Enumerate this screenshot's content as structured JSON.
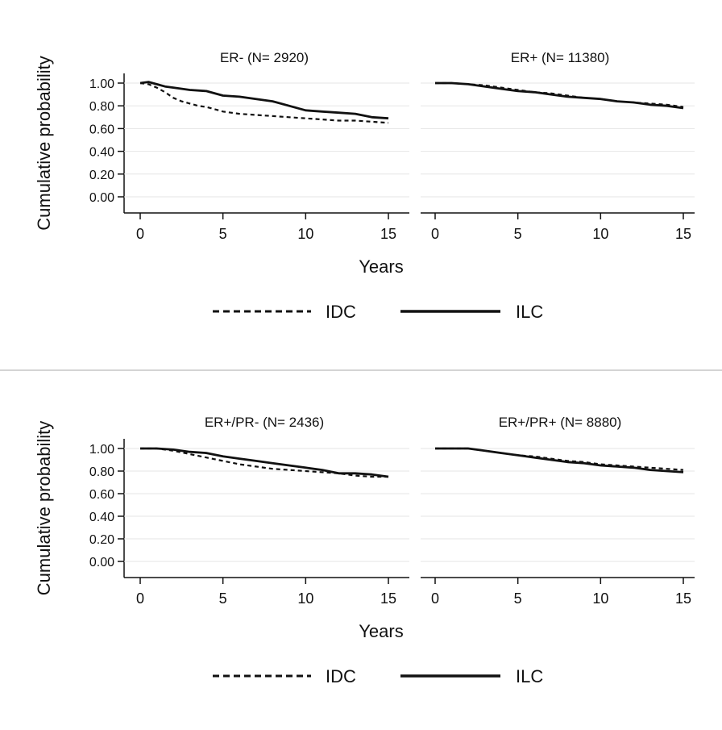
{
  "chart_data": [
    {
      "type": "line",
      "ylabel": "Cumulative probability",
      "xlabel": "Years",
      "xlim": [
        0,
        15
      ],
      "ylim": [
        0,
        1
      ],
      "xticks": [
        "0",
        "5",
        "10",
        "15"
      ],
      "yticks": [
        "0.00",
        "0.20",
        "0.40",
        "0.60",
        "0.80",
        "1.00"
      ],
      "grid": true,
      "legend": {
        "position": "bottom",
        "entries": [
          "IDC",
          "ILC"
        ]
      },
      "panels": [
        {
          "title": "ER- (N= 2920)",
          "series": [
            {
              "name": "IDC",
              "style": "dashed",
              "x": [
                0,
                0.5,
                1,
                1.5,
                2,
                2.5,
                3,
                3.5,
                4,
                4.5,
                5,
                6,
                7,
                8,
                9,
                10,
                11,
                12,
                13,
                14,
                15
              ],
              "y": [
                1.0,
                0.99,
                0.96,
                0.92,
                0.87,
                0.84,
                0.82,
                0.8,
                0.79,
                0.77,
                0.75,
                0.73,
                0.72,
                0.71,
                0.7,
                0.69,
                0.68,
                0.67,
                0.67,
                0.66,
                0.65
              ]
            },
            {
              "name": "ILC",
              "style": "solid",
              "x": [
                0,
                0.5,
                1,
                1.5,
                2,
                3,
                4,
                5,
                6,
                7,
                8,
                9,
                10,
                11,
                12,
                13,
                14,
                15
              ],
              "y": [
                1.0,
                1.01,
                0.99,
                0.97,
                0.96,
                0.94,
                0.93,
                0.89,
                0.88,
                0.86,
                0.84,
                0.8,
                0.76,
                0.75,
                0.74,
                0.73,
                0.7,
                0.69
              ]
            }
          ]
        },
        {
          "title": "ER+ (N= 11380)",
          "series": [
            {
              "name": "IDC",
              "style": "dashed",
              "x": [
                0,
                1,
                2,
                3,
                4,
                5,
                6,
                7,
                8,
                9,
                10,
                11,
                12,
                13,
                14,
                15
              ],
              "y": [
                1.0,
                1.0,
                0.99,
                0.98,
                0.96,
                0.94,
                0.92,
                0.91,
                0.89,
                0.87,
                0.86,
                0.84,
                0.83,
                0.82,
                0.81,
                0.79
              ]
            },
            {
              "name": "ILC",
              "style": "solid",
              "x": [
                0,
                1,
                2,
                3,
                4,
                5,
                6,
                7,
                8,
                9,
                10,
                11,
                12,
                13,
                14,
                15
              ],
              "y": [
                1.0,
                1.0,
                0.99,
                0.97,
                0.95,
                0.93,
                0.92,
                0.9,
                0.88,
                0.87,
                0.86,
                0.84,
                0.83,
                0.81,
                0.8,
                0.78
              ]
            }
          ]
        }
      ]
    },
    {
      "type": "line",
      "ylabel": "Cumulative probability",
      "xlabel": "Years",
      "xlim": [
        0,
        15
      ],
      "ylim": [
        0,
        1
      ],
      "xticks": [
        "0",
        "5",
        "10",
        "15"
      ],
      "yticks": [
        "0.00",
        "0.20",
        "0.40",
        "0.60",
        "0.80",
        "1.00"
      ],
      "grid": true,
      "legend": {
        "position": "bottom",
        "entries": [
          "IDC",
          "ILC"
        ]
      },
      "panels": [
        {
          "title": "ER+/PR- (N= 2436)",
          "series": [
            {
              "name": "IDC",
              "style": "dashed",
              "x": [
                0,
                1,
                2,
                3,
                4,
                5,
                6,
                7,
                8,
                9,
                10,
                11,
                12,
                13,
                14,
                15
              ],
              "y": [
                1.0,
                1.0,
                0.98,
                0.95,
                0.92,
                0.89,
                0.86,
                0.84,
                0.82,
                0.81,
                0.8,
                0.79,
                0.78,
                0.76,
                0.75,
                0.75
              ]
            },
            {
              "name": "ILC",
              "style": "solid",
              "x": [
                0,
                1,
                2,
                3,
                4,
                5,
                6,
                7,
                8,
                9,
                10,
                11,
                12,
                13,
                14,
                15
              ],
              "y": [
                1.0,
                1.0,
                0.99,
                0.97,
                0.96,
                0.93,
                0.91,
                0.89,
                0.87,
                0.85,
                0.83,
                0.81,
                0.78,
                0.78,
                0.77,
                0.75
              ]
            }
          ]
        },
        {
          "title": "ER+/PR+ (N= 8880)",
          "series": [
            {
              "name": "IDC",
              "style": "dashed",
              "x": [
                0,
                1,
                2,
                3,
                4,
                5,
                6,
                7,
                8,
                9,
                10,
                11,
                12,
                13,
                14,
                15
              ],
              "y": [
                1.0,
                1.0,
                1.0,
                0.98,
                0.96,
                0.94,
                0.93,
                0.91,
                0.89,
                0.88,
                0.86,
                0.85,
                0.84,
                0.83,
                0.82,
                0.81
              ]
            },
            {
              "name": "ILC",
              "style": "solid",
              "x": [
                0,
                1,
                2,
                3,
                4,
                5,
                6,
                7,
                8,
                9,
                10,
                11,
                12,
                13,
                14,
                15
              ],
              "y": [
                1.0,
                1.0,
                1.0,
                0.98,
                0.96,
                0.94,
                0.92,
                0.9,
                0.88,
                0.87,
                0.85,
                0.84,
                0.83,
                0.81,
                0.8,
                0.79
              ]
            }
          ]
        }
      ]
    }
  ]
}
